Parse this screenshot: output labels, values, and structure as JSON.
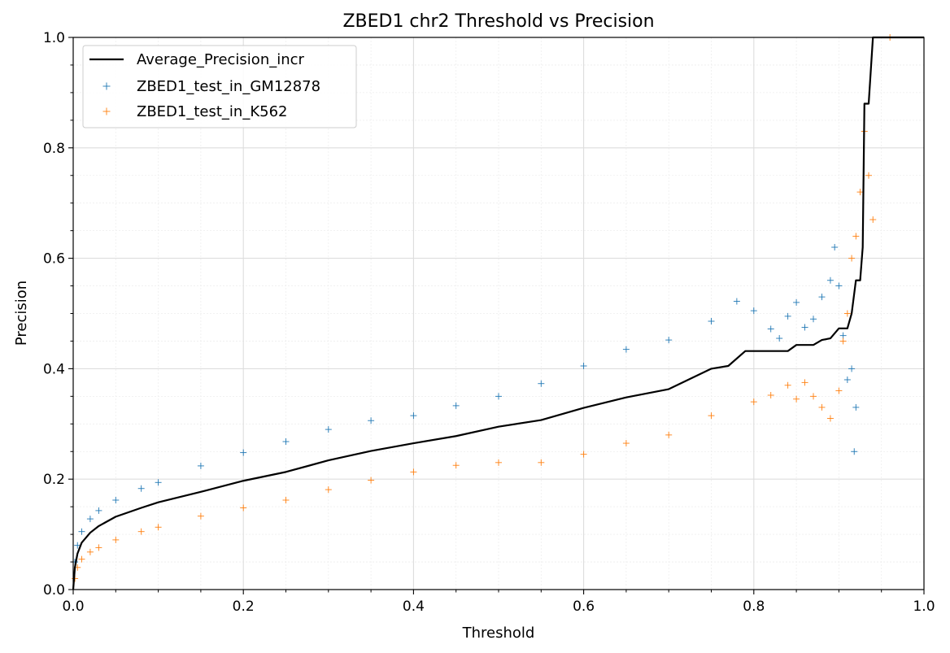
{
  "chart_data": {
    "type": "line",
    "title": "ZBED1 chr2 Threshold vs Precision",
    "xlabel": "Threshold",
    "ylabel": "Precision",
    "xlim": [
      0,
      1
    ],
    "ylim": [
      0,
      1
    ],
    "x_ticks": [
      "0.0",
      "0.2",
      "0.4",
      "0.6",
      "0.8",
      "1.0"
    ],
    "y_ticks": [
      "0.0",
      "0.2",
      "0.4",
      "0.6",
      "0.8",
      "1.0"
    ],
    "grid": true,
    "minor_grid": true,
    "legend_position": "top-left",
    "series": [
      {
        "name": "Average_Precision_incr",
        "kind": "line",
        "color": "#000000",
        "points": [
          [
            0.0,
            0.0
          ],
          [
            0.002,
            0.04
          ],
          [
            0.005,
            0.065
          ],
          [
            0.01,
            0.085
          ],
          [
            0.02,
            0.103
          ],
          [
            0.03,
            0.115
          ],
          [
            0.05,
            0.132
          ],
          [
            0.08,
            0.148
          ],
          [
            0.1,
            0.158
          ],
          [
            0.15,
            0.177
          ],
          [
            0.2,
            0.197
          ],
          [
            0.25,
            0.213
          ],
          [
            0.3,
            0.234
          ],
          [
            0.35,
            0.251
          ],
          [
            0.4,
            0.265
          ],
          [
            0.45,
            0.278
          ],
          [
            0.5,
            0.295
          ],
          [
            0.55,
            0.307
          ],
          [
            0.6,
            0.329
          ],
          [
            0.65,
            0.348
          ],
          [
            0.7,
            0.363
          ],
          [
            0.75,
            0.4
          ],
          [
            0.77,
            0.405
          ],
          [
            0.79,
            0.432
          ],
          [
            0.8,
            0.432
          ],
          [
            0.82,
            0.432
          ],
          [
            0.84,
            0.432
          ],
          [
            0.85,
            0.443
          ],
          [
            0.86,
            0.443
          ],
          [
            0.87,
            0.443
          ],
          [
            0.88,
            0.452
          ],
          [
            0.89,
            0.455
          ],
          [
            0.9,
            0.473
          ],
          [
            0.91,
            0.473
          ],
          [
            0.915,
            0.5
          ],
          [
            0.92,
            0.56
          ],
          [
            0.925,
            0.56
          ],
          [
            0.928,
            0.62
          ],
          [
            0.93,
            0.88
          ],
          [
            0.935,
            0.88
          ],
          [
            0.94,
            1.0
          ],
          [
            1.0,
            1.0
          ]
        ]
      },
      {
        "name": "ZBED1_test_in_GM12878",
        "kind": "scatter",
        "color": "#1f77b4",
        "points": [
          [
            0.0,
            0.0
          ],
          [
            0.002,
            0.05
          ],
          [
            0.005,
            0.08
          ],
          [
            0.01,
            0.105
          ],
          [
            0.02,
            0.128
          ],
          [
            0.03,
            0.143
          ],
          [
            0.05,
            0.162
          ],
          [
            0.08,
            0.183
          ],
          [
            0.1,
            0.194
          ],
          [
            0.15,
            0.224
          ],
          [
            0.2,
            0.248
          ],
          [
            0.25,
            0.268
          ],
          [
            0.3,
            0.29
          ],
          [
            0.35,
            0.306
          ],
          [
            0.4,
            0.315
          ],
          [
            0.45,
            0.333
          ],
          [
            0.5,
            0.35
          ],
          [
            0.55,
            0.373
          ],
          [
            0.6,
            0.405
          ],
          [
            0.65,
            0.435
          ],
          [
            0.7,
            0.452
          ],
          [
            0.75,
            0.486
          ],
          [
            0.78,
            0.522
          ],
          [
            0.8,
            0.505
          ],
          [
            0.82,
            0.472
          ],
          [
            0.83,
            0.455
          ],
          [
            0.84,
            0.495
          ],
          [
            0.85,
            0.52
          ],
          [
            0.86,
            0.475
          ],
          [
            0.87,
            0.49
          ],
          [
            0.88,
            0.53
          ],
          [
            0.89,
            0.56
          ],
          [
            0.895,
            0.62
          ],
          [
            0.9,
            0.55
          ],
          [
            0.905,
            0.46
          ],
          [
            0.91,
            0.38
          ],
          [
            0.915,
            0.4
          ],
          [
            0.92,
            0.33
          ],
          [
            0.918,
            0.25
          ]
        ]
      },
      {
        "name": "ZBED1_test_in_K562",
        "kind": "scatter",
        "color": "#ff7f0e",
        "points": [
          [
            0.0,
            0.0
          ],
          [
            0.002,
            0.02
          ],
          [
            0.005,
            0.04
          ],
          [
            0.01,
            0.055
          ],
          [
            0.02,
            0.068
          ],
          [
            0.03,
            0.076
          ],
          [
            0.05,
            0.09
          ],
          [
            0.08,
            0.105
          ],
          [
            0.1,
            0.113
          ],
          [
            0.15,
            0.133
          ],
          [
            0.2,
            0.148
          ],
          [
            0.25,
            0.162
          ],
          [
            0.3,
            0.181
          ],
          [
            0.35,
            0.198
          ],
          [
            0.4,
            0.213
          ],
          [
            0.45,
            0.225
          ],
          [
            0.5,
            0.23
          ],
          [
            0.55,
            0.23
          ],
          [
            0.6,
            0.245
          ],
          [
            0.65,
            0.265
          ],
          [
            0.7,
            0.28
          ],
          [
            0.75,
            0.315
          ],
          [
            0.8,
            0.34
          ],
          [
            0.82,
            0.352
          ],
          [
            0.84,
            0.37
          ],
          [
            0.85,
            0.345
          ],
          [
            0.86,
            0.375
          ],
          [
            0.87,
            0.35
          ],
          [
            0.88,
            0.33
          ],
          [
            0.89,
            0.31
          ],
          [
            0.9,
            0.36
          ],
          [
            0.905,
            0.45
          ],
          [
            0.91,
            0.5
          ],
          [
            0.915,
            0.6
          ],
          [
            0.92,
            0.64
          ],
          [
            0.925,
            0.72
          ],
          [
            0.93,
            0.83
          ],
          [
            0.935,
            0.75
          ],
          [
            0.94,
            0.67
          ],
          [
            0.96,
            1.0
          ]
        ]
      }
    ]
  }
}
